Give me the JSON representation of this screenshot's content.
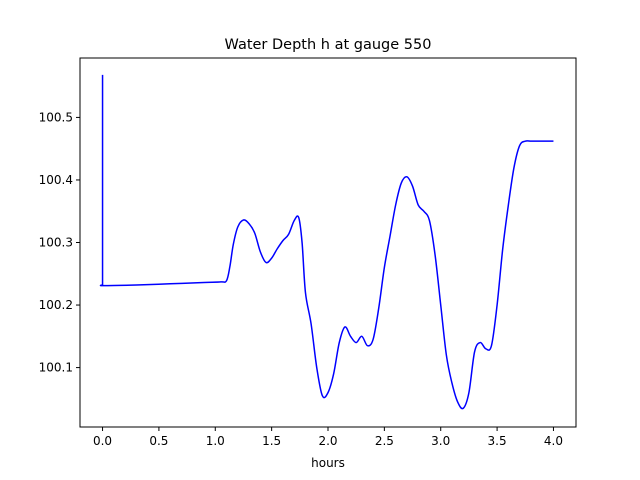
{
  "chart_data": {
    "type": "line",
    "title": "Water Depth h at gauge 550",
    "xlabel": "hours",
    "ylabel": "",
    "xlim": [
      -0.2,
      4.2
    ],
    "ylim": [
      100.005,
      100.595
    ],
    "x_ticks": [
      0.0,
      0.5,
      1.0,
      1.5,
      2.0,
      2.5,
      3.0,
      3.5,
      4.0
    ],
    "x_tick_labels": [
      "0.0",
      "0.5",
      "1.0",
      "1.5",
      "2.0",
      "2.5",
      "3.0",
      "3.5",
      "4.0"
    ],
    "y_ticks": [
      100.1,
      100.2,
      100.3,
      100.4,
      100.5
    ],
    "y_tick_labels": [
      "100.1",
      "100.2",
      "100.3",
      "100.4",
      "100.5"
    ],
    "grid": false,
    "legend": "none",
    "series": [
      {
        "color": "#0000ff",
        "x": [
          0.0,
          0.0,
          0.005,
          0.3,
          0.6,
          0.9,
          1.05,
          1.1,
          1.13,
          1.16,
          1.2,
          1.25,
          1.3,
          1.35,
          1.4,
          1.45,
          1.5,
          1.55,
          1.6,
          1.65,
          1.7,
          1.74,
          1.77,
          1.8,
          1.85,
          1.9,
          1.95,
          2.0,
          2.05,
          2.1,
          2.15,
          2.2,
          2.25,
          2.3,
          2.35,
          2.4,
          2.45,
          2.5,
          2.55,
          2.6,
          2.65,
          2.7,
          2.75,
          2.8,
          2.85,
          2.9,
          2.95,
          3.0,
          3.05,
          3.1,
          3.15,
          3.2,
          3.25,
          3.3,
          3.35,
          3.4,
          3.45,
          3.5,
          3.55,
          3.6,
          3.65,
          3.7,
          3.75,
          3.8,
          3.85,
          3.9,
          3.95,
          4.0
        ],
        "y": [
          100.568,
          100.232,
          100.231,
          100.232,
          100.234,
          100.236,
          100.237,
          100.239,
          100.262,
          100.297,
          100.325,
          100.336,
          100.33,
          100.315,
          100.285,
          100.268,
          100.275,
          100.29,
          100.303,
          100.313,
          100.335,
          100.34,
          100.3,
          100.22,
          100.17,
          100.1,
          100.055,
          100.06,
          100.09,
          100.14,
          100.165,
          100.15,
          100.14,
          100.15,
          100.135,
          100.145,
          100.195,
          100.26,
          100.31,
          100.36,
          100.395,
          100.405,
          100.39,
          100.36,
          100.35,
          100.335,
          100.28,
          100.2,
          100.12,
          100.075,
          100.045,
          100.035,
          100.06,
          100.125,
          100.14,
          100.13,
          100.135,
          100.2,
          100.29,
          100.36,
          100.42,
          100.455,
          100.462,
          100.462,
          100.462,
          100.462,
          100.462,
          100.462
        ]
      }
    ]
  }
}
